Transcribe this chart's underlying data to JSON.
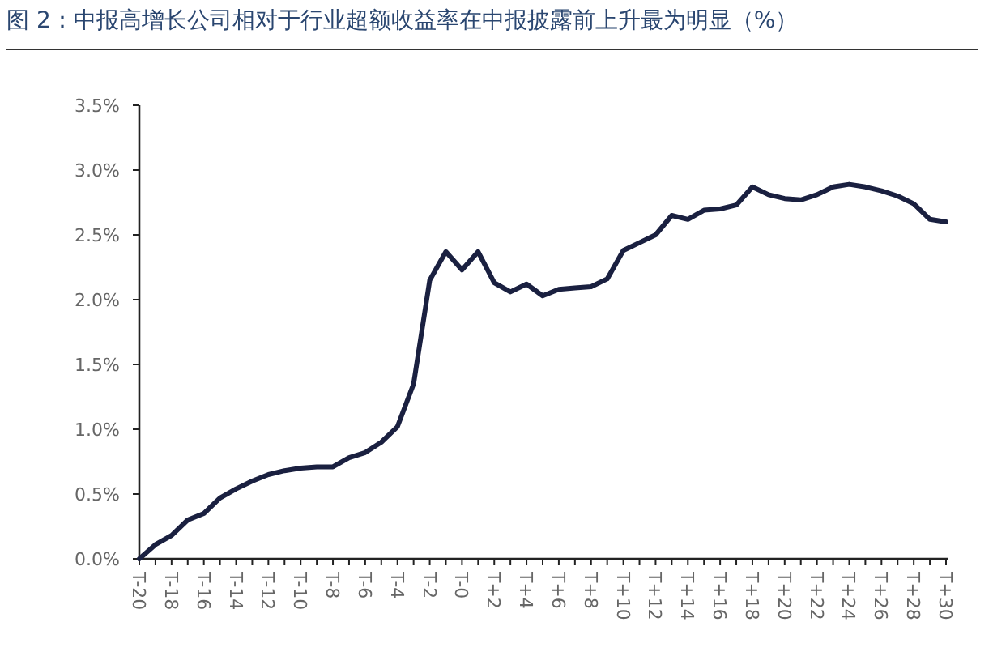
{
  "chart_data": {
    "type": "line",
    "title": "图 2：中报高增长公司相对于行业超额收益率在中报披露前上升最为明显（%）",
    "categories": [
      "T-20",
      null,
      "T-18",
      null,
      "T-16",
      null,
      "T-14",
      null,
      "T-12",
      null,
      "T-10",
      null,
      "T-8",
      null,
      "T-6",
      null,
      "T-4",
      null,
      "T-2",
      null,
      "T-0",
      null,
      "T+2",
      null,
      "T+4",
      null,
      "T+6",
      null,
      "T+8",
      null,
      "T+10",
      null,
      "T+12",
      null,
      "T+14",
      null,
      "T+16",
      null,
      "T+18",
      null,
      "T+20",
      null,
      "T+22",
      null,
      "T+24",
      null,
      "T+26",
      null,
      "T+28",
      null,
      "T+30"
    ],
    "values": [
      0.0,
      0.11,
      0.18,
      0.3,
      0.35,
      0.47,
      0.54,
      0.6,
      0.65,
      0.68,
      0.7,
      0.71,
      0.71,
      0.78,
      0.82,
      0.9,
      1.02,
      1.35,
      2.15,
      2.37,
      2.23,
      2.37,
      2.13,
      2.06,
      2.12,
      2.03,
      2.08,
      2.09,
      2.1,
      2.16,
      2.38,
      2.44,
      2.5,
      2.65,
      2.62,
      2.69,
      2.7,
      2.73,
      2.87,
      2.81,
      2.78,
      2.77,
      2.81,
      2.87,
      2.89,
      2.87,
      2.84,
      2.8,
      2.74,
      2.62,
      2.6
    ],
    "color": "#1a2040",
    "ylim": [
      0,
      3.5
    ],
    "yticks": [
      {
        "value": 0,
        "label": "0.0%"
      },
      {
        "value": 0.5,
        "label": "0.5%"
      },
      {
        "value": 1,
        "label": "1.0%"
      },
      {
        "value": 1.5,
        "label": "1.5%"
      },
      {
        "value": 2,
        "label": "2.0%"
      },
      {
        "value": 2.5,
        "label": "2.5%"
      },
      {
        "value": 3,
        "label": "3.0%"
      },
      {
        "value": 3.5,
        "label": "3.5%"
      }
    ]
  }
}
